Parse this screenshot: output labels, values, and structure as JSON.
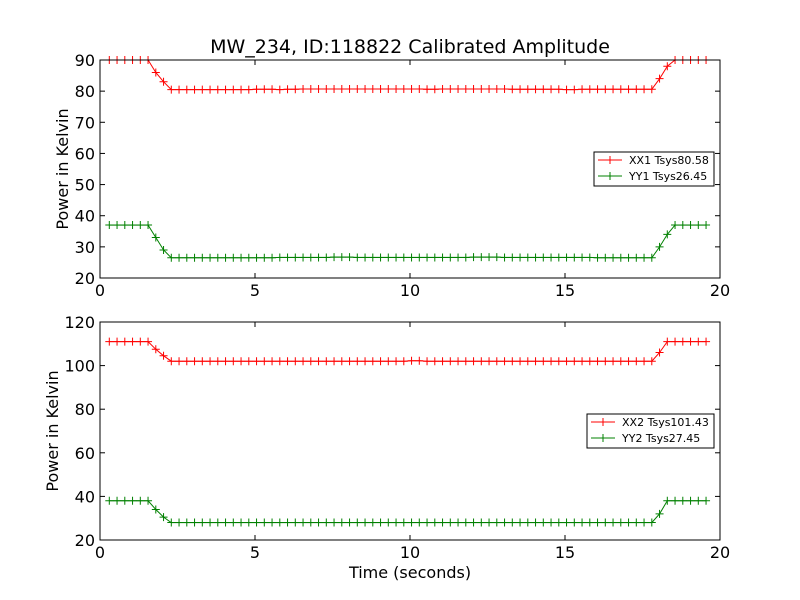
{
  "chart_data": [
    {
      "type": "line",
      "title": "MW_234, ID:118822 Calibrated Amplitude",
      "xlabel": "",
      "ylabel": "Power in Kelvin",
      "xlim": [
        0,
        20
      ],
      "ylim": [
        20,
        90
      ],
      "xticks": [
        "0",
        "5",
        "10",
        "15",
        "20"
      ],
      "yticks": [
        "20",
        "30",
        "40",
        "50",
        "60",
        "70",
        "80",
        "90"
      ],
      "legend_position": "center-right",
      "x": [
        0.3,
        0.55,
        0.8,
        1.05,
        1.3,
        1.55,
        1.8,
        2.05,
        2.3,
        2.55,
        2.8,
        3.05,
        3.3,
        3.55,
        3.8,
        4.05,
        4.3,
        4.55,
        4.8,
        5.05,
        5.3,
        5.55,
        5.8,
        6.05,
        6.3,
        6.55,
        6.8,
        7.05,
        7.3,
        7.55,
        7.8,
        8.05,
        8.3,
        8.55,
        8.8,
        9.05,
        9.3,
        9.55,
        9.8,
        10.05,
        10.3,
        10.55,
        10.8,
        11.05,
        11.3,
        11.55,
        11.8,
        12.05,
        12.3,
        12.55,
        12.8,
        13.05,
        13.3,
        13.55,
        13.8,
        14.05,
        14.3,
        14.55,
        14.8,
        15.05,
        15.3,
        15.55,
        15.8,
        16.05,
        16.3,
        16.55,
        16.8,
        17.05,
        17.3,
        17.55,
        17.8,
        18.05,
        18.3,
        18.55,
        18.8,
        19.05,
        19.3,
        19.55
      ],
      "series": [
        {
          "name": "XX1 Tsys80.58",
          "color": "#ff0000",
          "values": [
            90,
            90,
            90,
            90,
            90,
            90,
            86,
            83,
            80.5,
            80.5,
            80.5,
            80.5,
            80.5,
            80.5,
            80.5,
            80.5,
            80.5,
            80.5,
            80.5,
            80.6,
            80.6,
            80.6,
            80.5,
            80.6,
            80.6,
            80.7,
            80.7,
            80.7,
            80.7,
            80.7,
            80.7,
            80.7,
            80.7,
            80.7,
            80.7,
            80.7,
            80.7,
            80.7,
            80.7,
            80.7,
            80.7,
            80.6,
            80.6,
            80.7,
            80.7,
            80.7,
            80.7,
            80.7,
            80.7,
            80.7,
            80.7,
            80.7,
            80.6,
            80.6,
            80.6,
            80.6,
            80.6,
            80.6,
            80.6,
            80.5,
            80.5,
            80.6,
            80.6,
            80.6,
            80.6,
            80.6,
            80.6,
            80.6,
            80.6,
            80.6,
            80.6,
            84,
            88,
            90,
            90,
            90,
            90,
            90
          ]
        },
        {
          "name": "YY1 Tsys26.45",
          "color": "#008000",
          "values": [
            37,
            37,
            37,
            37,
            37,
            37,
            33,
            29,
            26.5,
            26.5,
            26.5,
            26.5,
            26.5,
            26.5,
            26.5,
            26.5,
            26.5,
            26.5,
            26.5,
            26.5,
            26.5,
            26.5,
            26.6,
            26.6,
            26.6,
            26.6,
            26.6,
            26.6,
            26.6,
            26.7,
            26.7,
            26.7,
            26.6,
            26.6,
            26.6,
            26.6,
            26.6,
            26.6,
            26.6,
            26.6,
            26.6,
            26.6,
            26.6,
            26.6,
            26.6,
            26.6,
            26.6,
            26.7,
            26.7,
            26.7,
            26.7,
            26.6,
            26.6,
            26.6,
            26.6,
            26.6,
            26.6,
            26.6,
            26.6,
            26.6,
            26.6,
            26.6,
            26.6,
            26.5,
            26.5,
            26.5,
            26.5,
            26.5,
            26.5,
            26.5,
            26.5,
            30,
            34,
            37,
            37,
            37,
            37,
            37
          ]
        }
      ]
    },
    {
      "type": "line",
      "title": "",
      "xlabel": "Time (seconds)",
      "ylabel": "Power in Kelvin",
      "xlim": [
        0,
        20
      ],
      "ylim": [
        20,
        120
      ],
      "xticks": [
        "0",
        "5",
        "10",
        "15",
        "20"
      ],
      "yticks": [
        "20",
        "40",
        "60",
        "80",
        "100",
        "120"
      ],
      "legend_position": "center-right",
      "x": [
        0.3,
        0.55,
        0.8,
        1.05,
        1.3,
        1.55,
        1.8,
        2.05,
        2.3,
        2.55,
        2.8,
        3.05,
        3.3,
        3.55,
        3.8,
        4.05,
        4.3,
        4.55,
        4.8,
        5.05,
        5.3,
        5.55,
        5.8,
        6.05,
        6.3,
        6.55,
        6.8,
        7.05,
        7.3,
        7.55,
        7.8,
        8.05,
        8.3,
        8.55,
        8.8,
        9.05,
        9.3,
        9.55,
        9.8,
        10.05,
        10.3,
        10.55,
        10.8,
        11.05,
        11.3,
        11.55,
        11.8,
        12.05,
        12.3,
        12.55,
        12.8,
        13.05,
        13.3,
        13.55,
        13.8,
        14.05,
        14.3,
        14.55,
        14.8,
        15.05,
        15.3,
        15.55,
        15.8,
        16.05,
        16.3,
        16.55,
        16.8,
        17.05,
        17.3,
        17.55,
        17.8,
        18.05,
        18.3,
        18.55,
        18.8,
        19.05,
        19.3,
        19.55
      ],
      "series": [
        {
          "name": "XX2 Tsys101.43",
          "color": "#ff0000",
          "values": [
            111,
            111,
            111,
            111,
            111,
            111,
            107.5,
            104.5,
            102,
            102,
            102,
            102,
            102,
            102,
            102,
            102,
            102,
            102,
            102,
            102,
            102,
            102,
            102,
            102,
            102,
            102,
            102,
            102,
            102,
            102,
            102,
            102,
            102,
            102,
            102,
            102,
            102,
            102,
            102,
            102.2,
            102.2,
            102,
            102,
            102,
            102,
            102,
            102,
            102,
            102,
            102,
            102,
            102,
            102,
            102,
            102,
            102,
            102,
            102,
            102,
            102,
            102,
            102,
            102,
            102,
            102,
            102,
            102,
            102,
            102,
            102,
            102,
            106,
            111,
            111,
            111,
            111,
            111,
            111
          ]
        },
        {
          "name": "YY2 Tsys27.45",
          "color": "#008000",
          "values": [
            38,
            38,
            38,
            38,
            38,
            38,
            34,
            30.5,
            28,
            28,
            28,
            28,
            28,
            28,
            28,
            28,
            28,
            28,
            28,
            28,
            28,
            28,
            28,
            28,
            28,
            28,
            28,
            28,
            28,
            28,
            28,
            28,
            28,
            28,
            28,
            28,
            28,
            28,
            28,
            28,
            28,
            28,
            28,
            28,
            28,
            28,
            28,
            28,
            28,
            28,
            28,
            28,
            28,
            28,
            28,
            28,
            28,
            28,
            28,
            28,
            28,
            28,
            28,
            28,
            28,
            28,
            28,
            28,
            28,
            28,
            28,
            32,
            38,
            38,
            38,
            38,
            38,
            38
          ]
        }
      ]
    }
  ]
}
